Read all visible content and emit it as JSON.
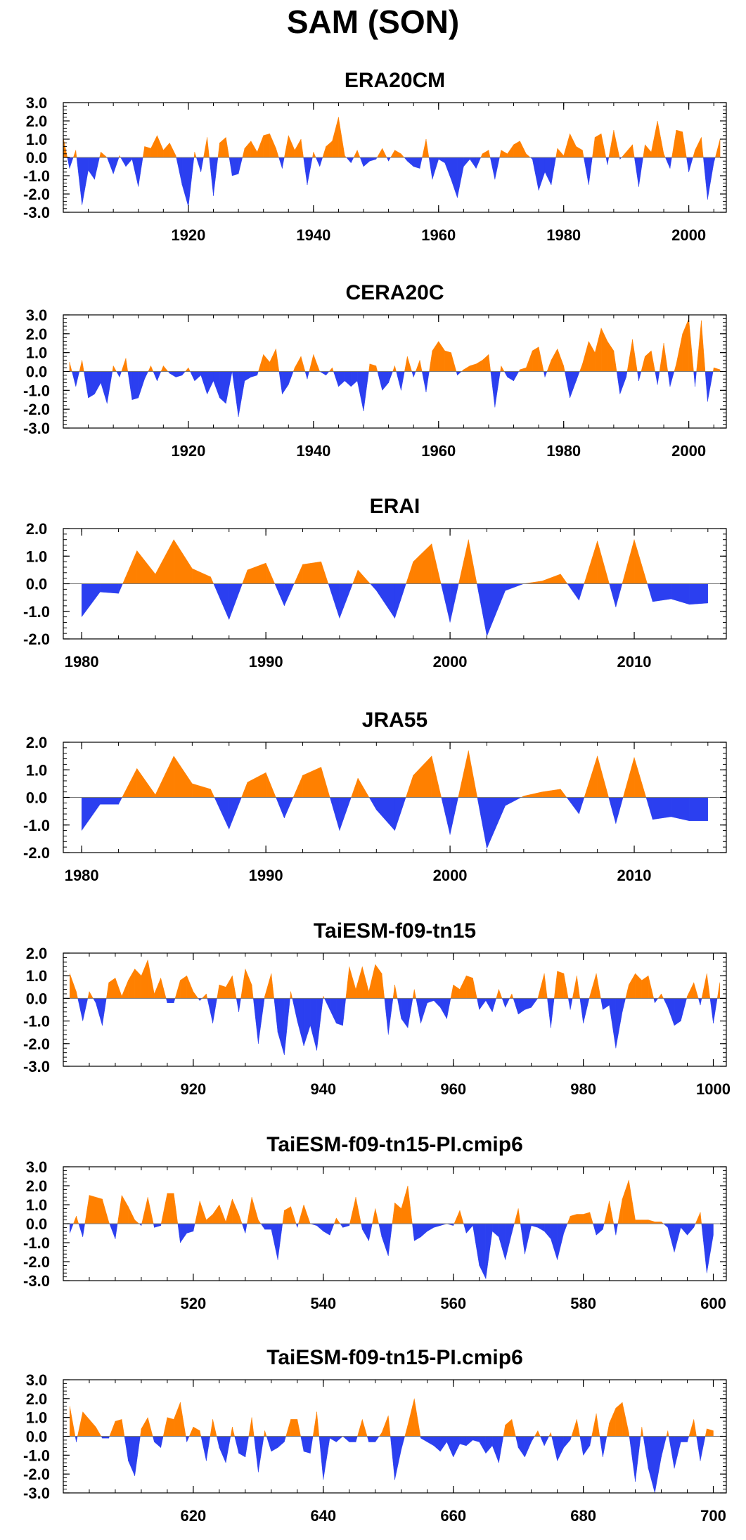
{
  "title": "SAM (SON)",
  "colors": {
    "positive": "#ff8000",
    "negative": "#2b3ff0",
    "frame": "#000000"
  },
  "chart_data": [
    {
      "type": "area",
      "title": "ERA20CM",
      "xlim": [
        1900,
        2006
      ],
      "ylim": [
        -3,
        3
      ],
      "xticks": [
        1920,
        1940,
        1960,
        1980,
        2000
      ],
      "yticks": [
        3,
        2,
        1,
        0,
        -1,
        -2,
        -3
      ],
      "ytick_labels": [
        "3.0",
        "2.0",
        "1.0",
        "0.0",
        "-1.0",
        "-2.0",
        "-3.0"
      ],
      "x": [
        1900,
        1901,
        1902,
        1903,
        1904,
        1905,
        1906,
        1907,
        1908,
        1909,
        1910,
        1911,
        1912,
        1913,
        1914,
        1915,
        1916,
        1917,
        1918,
        1919,
        1920,
        1921,
        1922,
        1923,
        1924,
        1925,
        1926,
        1927,
        1928,
        1929,
        1930,
        1931,
        1932,
        1933,
        1934,
        1935,
        1936,
        1937,
        1938,
        1939,
        1940,
        1941,
        1942,
        1943,
        1944,
        1945,
        1946,
        1947,
        1948,
        1949,
        1950,
        1951,
        1952,
        1953,
        1954,
        1955,
        1956,
        1957,
        1958,
        1959,
        1960,
        1961,
        1962,
        1963,
        1964,
        1965,
        1966,
        1967,
        1968,
        1969,
        1970,
        1971,
        1972,
        1973,
        1974,
        1975,
        1976,
        1977,
        1978,
        1979,
        1980,
        1981,
        1982,
        1983,
        1984,
        1985,
        1986,
        1987,
        1988,
        1989,
        1990,
        1991,
        1992,
        1993,
        1994,
        1995,
        1996,
        1997,
        1998,
        1999,
        2000,
        2001,
        2002,
        2003,
        2004,
        2005
      ],
      "values": [
        1.1,
        -0.6,
        0.4,
        -2.6,
        -0.7,
        -1.2,
        0.3,
        0.0,
        -0.9,
        0.1,
        -0.5,
        -0.1,
        -1.6,
        0.6,
        0.5,
        1.2,
        0.4,
        0.8,
        0.1,
        -1.5,
        -2.7,
        0.3,
        -0.8,
        1.1,
        -2.1,
        0.8,
        1.1,
        -1.0,
        -0.9,
        0.5,
        0.9,
        0.3,
        1.2,
        1.3,
        0.5,
        -0.6,
        1.2,
        0.4,
        1.0,
        -1.5,
        0.3,
        -0.5,
        0.6,
        0.9,
        2.2,
        0.1,
        -0.3,
        0.4,
        -0.5,
        -0.2,
        -0.1,
        0.5,
        -0.2,
        0.4,
        0.2,
        -0.2,
        -0.5,
        -0.6,
        1.0,
        -1.2,
        -0.1,
        -0.3,
        -1.2,
        -2.2,
        -0.5,
        -0.1,
        -0.6,
        0.2,
        0.4,
        -1.2,
        0.4,
        0.2,
        0.7,
        0.9,
        0.2,
        -0.1,
        -1.8,
        -0.8,
        -1.5,
        0.5,
        0.1,
        1.3,
        0.6,
        0.4,
        -1.5,
        1.1,
        1.3,
        -0.4,
        1.5,
        -0.1,
        0.3,
        0.7,
        -1.6,
        0.7,
        0.3,
        2.0,
        0.2,
        -0.6,
        1.5,
        1.4,
        -0.8,
        0.4,
        1.1,
        -2.3,
        -0.3,
        1.0
      ]
    },
    {
      "type": "area",
      "title": "CERA20C",
      "xlim": [
        1900,
        2006
      ],
      "ylim": [
        -3,
        3
      ],
      "xticks": [
        1920,
        1940,
        1960,
        1980,
        2000
      ],
      "yticks": [
        3,
        2,
        1,
        0,
        -1,
        -2,
        -3
      ],
      "ytick_labels": [
        "3.0",
        "2.0",
        "1.0",
        "0.0",
        "-1.0",
        "-2.0",
        "-3.0"
      ],
      "x": [
        1901,
        1902,
        1903,
        1904,
        1905,
        1906,
        1907,
        1908,
        1909,
        1910,
        1911,
        1912,
        1913,
        1914,
        1915,
        1916,
        1917,
        1918,
        1919,
        1920,
        1921,
        1922,
        1923,
        1924,
        1925,
        1926,
        1927,
        1928,
        1929,
        1930,
        1931,
        1932,
        1933,
        1934,
        1935,
        1936,
        1937,
        1938,
        1939,
        1940,
        1941,
        1942,
        1943,
        1944,
        1945,
        1946,
        1947,
        1948,
        1949,
        1950,
        1951,
        1952,
        1953,
        1954,
        1955,
        1956,
        1957,
        1958,
        1959,
        1960,
        1961,
        1962,
        1963,
        1964,
        1965,
        1966,
        1967,
        1968,
        1969,
        1970,
        1971,
        1972,
        1973,
        1974,
        1975,
        1976,
        1977,
        1978,
        1979,
        1980,
        1981,
        1982,
        1983,
        1984,
        1985,
        1986,
        1987,
        1988,
        1989,
        1990,
        1991,
        1992,
        1993,
        1994,
        1995,
        1996,
        1997,
        1998,
        1999,
        2000,
        2001,
        2002,
        2003,
        2004,
        2005
      ],
      "values": [
        0.5,
        -0.8,
        0.6,
        -1.4,
        -1.2,
        -0.6,
        -1.7,
        0.3,
        -0.3,
        0.7,
        -1.5,
        -1.4,
        -0.4,
        0.3,
        -0.5,
        0.3,
        -0.1,
        -0.3,
        -0.2,
        0.2,
        -0.5,
        -0.2,
        -1.2,
        -0.5,
        -1.4,
        -1.7,
        0.0,
        -2.4,
        -0.5,
        -0.3,
        -0.2,
        0.9,
        0.5,
        1.2,
        -1.2,
        -0.7,
        0.2,
        0.8,
        -0.4,
        0.9,
        0.0,
        -0.2,
        0.2,
        -0.8,
        -0.5,
        -0.8,
        -0.5,
        -2.1,
        0.4,
        0.3,
        -1.0,
        -0.6,
        0.3,
        -1.0,
        0.8,
        -0.3,
        0.6,
        -1.1,
        1.1,
        1.6,
        1.1,
        1.0,
        -0.2,
        0.1,
        0.3,
        0.4,
        0.6,
        0.9,
        -1.9,
        0.3,
        -0.3,
        -0.5,
        0.1,
        0.2,
        1.1,
        1.3,
        -0.3,
        0.6,
        1.2,
        0.3,
        -1.4,
        -0.5,
        0.4,
        1.6,
        1.0,
        2.3,
        1.6,
        1.1,
        -1.2,
        -0.3,
        1.7,
        -0.5,
        0.8,
        1.1,
        -0.7,
        1.5,
        -0.8,
        0.4,
        2.0,
        2.8,
        -0.8,
        2.7,
        -1.6,
        0.2,
        0.1
      ],
      "values_tail": [
        0.2
      ]
    },
    {
      "type": "area",
      "title": "ERAI",
      "xlim": [
        1979,
        2015
      ],
      "ylim": [
        -2,
        2
      ],
      "xticks": [
        1980,
        1990,
        2000,
        2010
      ],
      "yticks": [
        2,
        1,
        0,
        -1,
        -2
      ],
      "ytick_labels": [
        "2.0",
        "1.0",
        "0.0",
        "-1.0",
        "-2.0"
      ],
      "x": [
        1980,
        1981,
        1982,
        1983,
        1984,
        1985,
        1986,
        1987,
        1988,
        1989,
        1990,
        1991,
        1992,
        1993,
        1994,
        1995,
        1996,
        1997,
        1998,
        1999,
        2000,
        2001,
        2002,
        2003,
        2004,
        2005,
        2006,
        2007,
        2008,
        2009,
        2010,
        2011,
        2012,
        2013,
        2014
      ],
      "values": [
        -1.2,
        -0.3,
        -0.35,
        1.2,
        0.35,
        1.6,
        0.55,
        0.25,
        -1.3,
        0.5,
        0.75,
        -0.8,
        0.7,
        0.8,
        -1.25,
        0.5,
        -0.25,
        -1.25,
        0.8,
        1.45,
        -1.4,
        1.6,
        -1.9,
        -0.25,
        0.0,
        0.1,
        0.35,
        -0.6,
        1.55,
        -0.85,
        1.6,
        -0.65,
        -0.55,
        -0.75,
        -0.7
      ]
    },
    {
      "type": "area",
      "title": "JRA55",
      "xlim": [
        1979,
        2015
      ],
      "ylim": [
        -2,
        2
      ],
      "xticks": [
        1980,
        1990,
        2000,
        2010
      ],
      "yticks": [
        2,
        1,
        0,
        -1,
        -2
      ],
      "ytick_labels": [
        "2.0",
        "1.0",
        "0.0",
        "-1.0",
        "-2.0"
      ],
      "x": [
        1980,
        1981,
        1982,
        1983,
        1984,
        1985,
        1986,
        1987,
        1988,
        1989,
        1990,
        1991,
        1992,
        1993,
        1994,
        1995,
        1996,
        1997,
        1998,
        1999,
        2000,
        2001,
        2002,
        2003,
        2004,
        2005,
        2006,
        2007,
        2008,
        2009,
        2010,
        2011,
        2012,
        2013,
        2014
      ],
      "values": [
        -1.2,
        -0.25,
        -0.25,
        1.05,
        0.1,
        1.5,
        0.5,
        0.3,
        -1.15,
        0.55,
        0.9,
        -0.75,
        0.8,
        1.1,
        -1.2,
        0.7,
        -0.45,
        -1.2,
        0.8,
        1.5,
        -1.35,
        1.7,
        -1.85,
        -0.3,
        0.05,
        0.2,
        0.3,
        -0.6,
        1.5,
        -0.95,
        1.45,
        -0.8,
        -0.7,
        -0.85,
        -0.85
      ]
    },
    {
      "type": "area",
      "title": "TaiESM-f09-tn15",
      "xlim": [
        900,
        1002
      ],
      "ylim": [
        -3,
        2
      ],
      "xticks": [
        920,
        940,
        960,
        980,
        1000
      ],
      "yticks": [
        2,
        1,
        0,
        -1,
        -2,
        -3
      ],
      "ytick_labels": [
        "2.0",
        "1.0",
        "0.0",
        "-1.0",
        "-2.0",
        "-3.0"
      ],
      "x": [
        901,
        902,
        903,
        904,
        905,
        906,
        907,
        908,
        909,
        910,
        911,
        912,
        913,
        914,
        915,
        916,
        917,
        918,
        919,
        920,
        921,
        922,
        923,
        924,
        925,
        926,
        927,
        928,
        929,
        930,
        931,
        932,
        933,
        934,
        935,
        936,
        937,
        938,
        939,
        940,
        941,
        942,
        943,
        944,
        945,
        946,
        947,
        948,
        949,
        950,
        951,
        952,
        953,
        954,
        955,
        956,
        957,
        958,
        959,
        960,
        961,
        962,
        963,
        964,
        965,
        966,
        967,
        968,
        969,
        970,
        971,
        972,
        973,
        974,
        975,
        976,
        977,
        978,
        979,
        980,
        981,
        982,
        983,
        984,
        985,
        986,
        987,
        988,
        989,
        990,
        991,
        992,
        993,
        994,
        995,
        996,
        997,
        998,
        999,
        1000,
        1001
      ],
      "values": [
        1.1,
        0.3,
        -1.0,
        0.3,
        -0.2,
        -1.2,
        0.7,
        0.9,
        0.1,
        0.8,
        1.3,
        1.0,
        1.7,
        0.2,
        0.9,
        -0.2,
        -0.2,
        0.8,
        1.0,
        0.3,
        -0.1,
        0.2,
        -1.1,
        0.6,
        0.5,
        1.0,
        -0.6,
        1.3,
        0.6,
        -2.0,
        0.1,
        1.1,
        -1.5,
        -2.5,
        0.3,
        -1.0,
        -2.1,
        -1.2,
        -2.3,
        0.1,
        -0.5,
        -1.1,
        -1.2,
        1.4,
        0.4,
        1.4,
        0.3,
        1.5,
        1.1,
        -1.6,
        0.6,
        -0.9,
        -1.3,
        0.4,
        -1.1,
        -0.2,
        -0.1,
        -0.4,
        -0.9,
        0.6,
        0.4,
        1.0,
        0.9,
        -0.5,
        -0.1,
        -0.6,
        0.4,
        -0.4,
        0.2,
        -0.7,
        -0.5,
        -0.4,
        0.0,
        1.1,
        -1.3,
        1.2,
        1.1,
        -0.5,
        1.0,
        -1.1,
        0.1,
        1.1,
        -0.5,
        -0.3,
        -2.2,
        -0.6,
        0.6,
        1.1,
        0.8,
        1.0,
        -0.2,
        0.2,
        -0.4,
        -1.2,
        -1.0,
        0.1,
        0.7,
        -0.3,
        1.1,
        -1.1,
        0.7
      ]
    },
    {
      "type": "area",
      "title": "TaiESM-f09-tn15-PI.cmip6",
      "xlim": [
        500,
        602
      ],
      "ylim": [
        -3,
        3
      ],
      "xticks": [
        520,
        540,
        560,
        580,
        600
      ],
      "yticks": [
        3,
        2,
        1,
        0,
        -1,
        -2,
        -3
      ],
      "ytick_labels": [
        "3.0",
        "2.0",
        "1.0",
        "0.0",
        "-1.0",
        "-2.0",
        "-3.0"
      ],
      "x": [
        501,
        502,
        503,
        504,
        505,
        506,
        507,
        508,
        509,
        510,
        511,
        512,
        513,
        514,
        515,
        516,
        517,
        518,
        519,
        520,
        521,
        522,
        523,
        524,
        525,
        526,
        527,
        528,
        529,
        530,
        531,
        532,
        533,
        534,
        535,
        536,
        537,
        538,
        539,
        540,
        541,
        542,
        543,
        544,
        545,
        546,
        547,
        548,
        549,
        550,
        551,
        552,
        553,
        554,
        555,
        556,
        557,
        558,
        559,
        560,
        561,
        562,
        563,
        564,
        565,
        566,
        567,
        568,
        569,
        570,
        571,
        572,
        573,
        574,
        575,
        576,
        577,
        578,
        579,
        580,
        581,
        582,
        583,
        584,
        585,
        586,
        587,
        588,
        589,
        590,
        591,
        592,
        593,
        594,
        595,
        596,
        597,
        598,
        599,
        600
      ],
      "values": [
        -0.5,
        0.4,
        -0.7,
        1.5,
        1.4,
        1.3,
        0.1,
        -0.8,
        1.5,
        0.9,
        0.2,
        -0.1,
        1.4,
        -0.2,
        -0.1,
        1.6,
        1.6,
        -1.0,
        -0.5,
        -0.4,
        1.2,
        0.2,
        0.5,
        1.0,
        0.1,
        1.3,
        0.5,
        -0.5,
        1.4,
        0.2,
        -0.3,
        -0.3,
        -1.9,
        0.7,
        0.9,
        -0.2,
        1.0,
        0.0,
        -0.1,
        -0.4,
        -0.6,
        0.3,
        -0.2,
        -0.1,
        1.4,
        -0.3,
        -0.9,
        0.8,
        -0.7,
        -1.7,
        1.1,
        0.8,
        2.0,
        -0.9,
        -0.7,
        -0.4,
        -0.2,
        -0.1,
        0.0,
        -0.1,
        0.7,
        -0.5,
        -0.1,
        -2.2,
        -2.9,
        -0.4,
        -0.7,
        -1.9,
        -0.5,
        0.8,
        -1.6,
        -0.1,
        -0.2,
        -0.4,
        -0.8,
        -1.9,
        -0.5,
        0.4,
        0.5,
        0.5,
        0.6,
        -0.6,
        -0.3,
        1.2,
        -0.6,
        1.3,
        2.3,
        0.2,
        0.2,
        0.2,
        0.1,
        0.1,
        -0.2,
        -1.5,
        -0.2,
        -0.6,
        -0.2,
        0.6,
        -2.6,
        -0.6
      ]
    },
    {
      "type": "area",
      "title": "TaiESM-f09-tn15-PI.cmip6",
      "xlim": [
        600,
        702
      ],
      "ylim": [
        -3,
        3
      ],
      "xticks": [
        620,
        640,
        660,
        680,
        700
      ],
      "yticks": [
        3,
        2,
        1,
        0,
        -1,
        -2,
        -3
      ],
      "ytick_labels": [
        "3.0",
        "2.0",
        "1.0",
        "0.0",
        "-1.0",
        "-2.0",
        "-3.0"
      ],
      "x": [
        601,
        602,
        603,
        604,
        605,
        606,
        607,
        608,
        609,
        610,
        611,
        612,
        613,
        614,
        615,
        616,
        617,
        618,
        619,
        620,
        621,
        622,
        623,
        624,
        625,
        626,
        627,
        628,
        629,
        630,
        631,
        632,
        633,
        634,
        635,
        636,
        637,
        638,
        639,
        640,
        641,
        642,
        643,
        644,
        645,
        646,
        647,
        648,
        649,
        650,
        651,
        652,
        653,
        654,
        655,
        656,
        657,
        658,
        659,
        660,
        661,
        662,
        663,
        664,
        665,
        666,
        667,
        668,
        669,
        670,
        671,
        672,
        673,
        674,
        675,
        676,
        677,
        678,
        679,
        680,
        681,
        682,
        683,
        684,
        685,
        686,
        687,
        688,
        689,
        690,
        691,
        692,
        693,
        694,
        695,
        696,
        697,
        698,
        699,
        700
      ],
      "values": [
        1.6,
        -0.3,
        1.3,
        0.9,
        0.5,
        -0.1,
        -0.1,
        0.8,
        0.9,
        -1.3,
        -2.1,
        0.4,
        1.0,
        -0.3,
        -0.6,
        1.0,
        0.9,
        1.8,
        -0.3,
        0.5,
        0.3,
        -1.3,
        0.9,
        -0.6,
        -1.4,
        0.5,
        -0.9,
        -1.1,
        1.0,
        -1.9,
        0.3,
        -0.8,
        -0.6,
        -0.3,
        0.9,
        0.9,
        -0.8,
        -0.9,
        1.3,
        -2.3,
        -0.1,
        -0.3,
        0.0,
        -0.3,
        -0.3,
        0.9,
        -0.3,
        -0.3,
        0.2,
        1.1,
        -2.3,
        -0.7,
        0.6,
        2.0,
        -0.1,
        -0.3,
        -0.5,
        -0.8,
        -0.3,
        -1.1,
        -0.4,
        -0.5,
        -0.2,
        -0.3,
        -0.9,
        -0.5,
        -1.4,
        0.6,
        0.9,
        -0.6,
        -1.1,
        -0.3,
        0.3,
        -0.5,
        0.2,
        -1.3,
        -0.6,
        -0.2,
        0.9,
        -1.0,
        -0.5,
        1.2,
        -1.1,
        0.7,
        1.5,
        1.8,
        0.2,
        -2.4,
        0.5,
        -1.7,
        -3.0,
        -1.1,
        0.3,
        -1.7,
        -0.3,
        -0.3,
        0.9,
        -1.3,
        0.4,
        0.3
      ]
    }
  ]
}
